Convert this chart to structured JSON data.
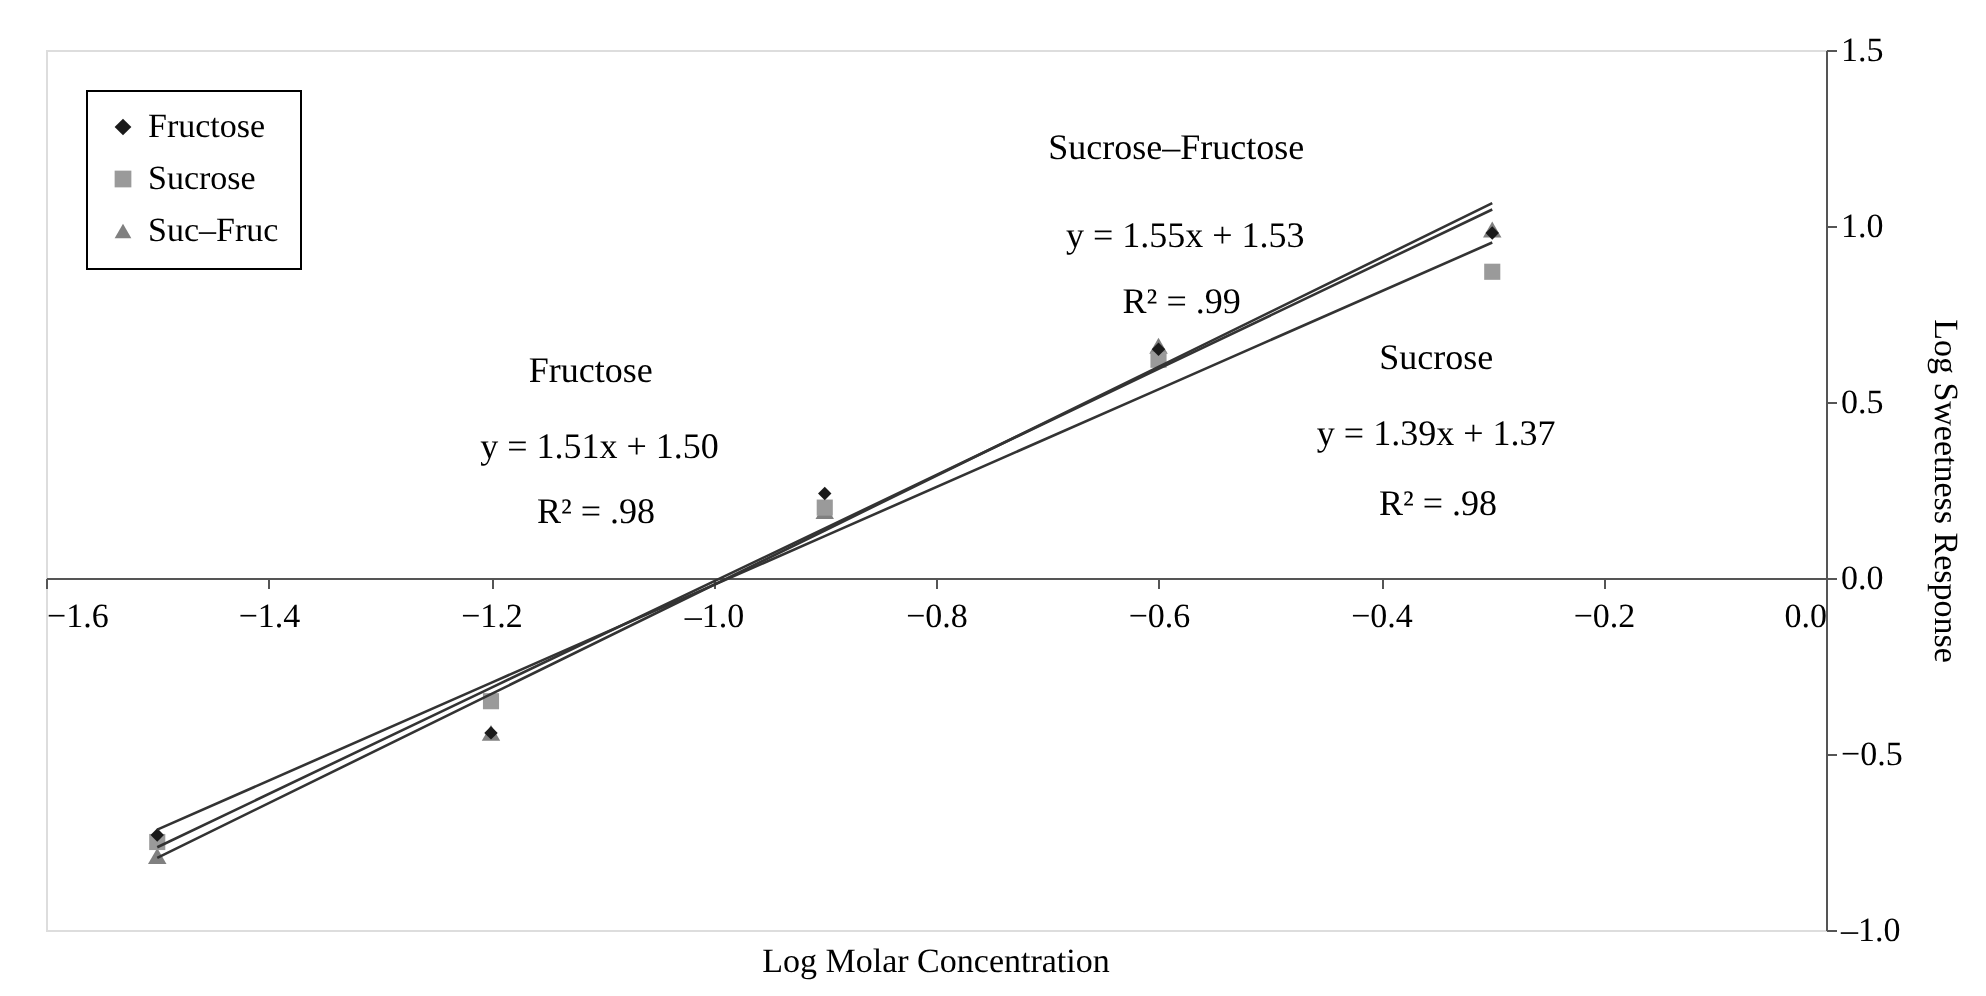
{
  "chart_data": {
    "type": "scatter",
    "xlabel": "Log Molar Concentration",
    "ylabel": "Log Sweetness Response",
    "x": [
      -1.5,
      -1.2,
      -0.9,
      -0.6,
      -0.3
    ],
    "series": [
      {
        "name": "Fructose",
        "marker": "diamond",
        "color": "#1a1a1a",
        "values": [
          -0.73,
          -0.44,
          0.24,
          0.65,
          0.98
        ]
      },
      {
        "name": "Sucrose",
        "marker": "square",
        "color": "#9a9a9a",
        "values": [
          -0.75,
          -0.35,
          0.2,
          0.62,
          0.87
        ]
      },
      {
        "name": "Suc–Fruc",
        "marker": "triangle",
        "color": "#808080",
        "values": [
          -0.79,
          -0.44,
          0.19,
          0.66,
          0.99
        ]
      },
      {
        "type": "line",
        "line_style": "solid",
        "color": "#333333",
        "values": [
          -0.765,
          -0.312,
          0.141,
          0.594,
          1.047
        ]
      },
      {
        "type": "line",
        "line_style": "solid",
        "color": "#333333",
        "values": [
          -0.715,
          -0.298,
          0.119,
          0.536,
          0.953
        ]
      },
      {
        "type": "line",
        "line_style": "solid",
        "color": "#333333",
        "values": [
          -0.795,
          -0.33,
          0.135,
          0.6,
          1.065
        ]
      }
    ],
    "annotations": [
      "Sucrose–Fructose",
      "y = 1.55x + 1.53",
      "R² = .99",
      "Fructose",
      "y = 1.51x + 1.50",
      "R² = .98",
      "Sucrose",
      "y = 1.39x + 1.37",
      "R² = .98"
    ],
    "xlim": [
      -1.6,
      0.0
    ],
    "xticks": [
      -1.6,
      -1.4,
      -1.2,
      {
        "value": -1.0,
        "label": "–1.0"
      },
      -0.8,
      -0.6,
      -0.4,
      -0.2,
      {
        "value": 0.0,
        "label": "0.0"
      }
    ],
    "ylim": [
      -1.0,
      1.5
    ],
    "yticks": [
      {
        "value": -1.0,
        "label": "–1.0"
      },
      -0.5,
      {
        "value": 0.0,
        "label": "0.0"
      },
      0.5,
      {
        "value": 1.0,
        "label": "1.0"
      },
      1.5
    ],
    "grid": false,
    "legend": "top left"
  }
}
